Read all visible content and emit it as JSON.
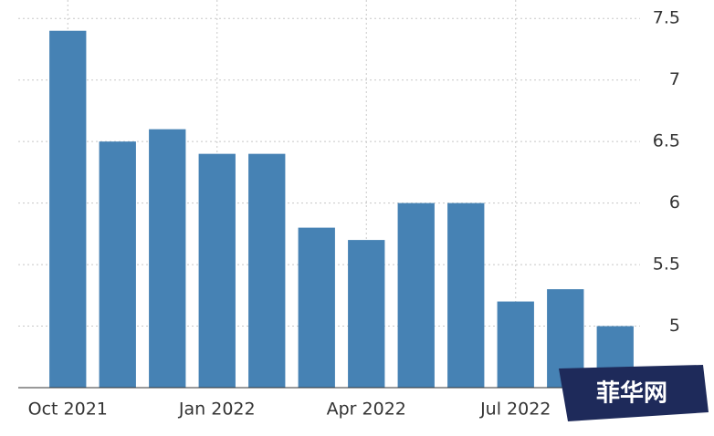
{
  "chart_data": {
    "type": "bar",
    "categories": [
      "Oct 2021",
      null,
      null,
      "Jan 2022",
      null,
      null,
      "Apr 2022",
      null,
      null,
      "Jul 2022",
      null,
      null
    ],
    "values": [
      7.4,
      6.5,
      6.6,
      6.4,
      6.4,
      5.8,
      5.7,
      6.0,
      6.0,
      5.2,
      5.3,
      5.0
    ],
    "color": "#4682b4",
    "ylim": [
      4.5,
      7.65
    ],
    "yticks": [
      5,
      5.5,
      6,
      6.5,
      7,
      7.5
    ],
    "grid": true
  },
  "watermark": "菲华网"
}
